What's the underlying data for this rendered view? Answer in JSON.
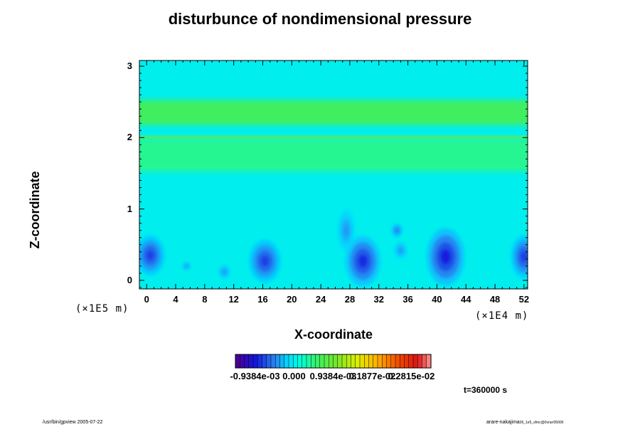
{
  "chart_data": {
    "type": "heatmap",
    "title": "disturbunce of nondimensional pressure",
    "xlabel": "X-coordinate",
    "ylabel": "Z-coordinate",
    "x_unit": "(×1E4 m)",
    "y_unit": "(×1E5 m)",
    "xlim": [
      -1,
      52.5
    ],
    "ylim": [
      -0.12,
      3.08
    ],
    "x_ticks": [
      "0",
      "4",
      "8",
      "12",
      "16",
      "20",
      "24",
      "28",
      "32",
      "36",
      "40",
      "44",
      "48",
      "52"
    ],
    "x_tick_values": [
      0,
      4,
      8,
      12,
      16,
      20,
      24,
      28,
      32,
      36,
      40,
      44,
      48,
      52
    ],
    "y_ticks": [
      "0",
      "1",
      "2",
      "3"
    ],
    "y_tick_values": [
      0,
      1,
      2,
      3
    ],
    "background_value": 0.0,
    "features": [
      {
        "kind": "band",
        "z_center": 2.35,
        "z_width": 0.35,
        "value": 0.0006
      },
      {
        "kind": "band",
        "z_center": 2.0,
        "z_width": 0.04,
        "value": 0.0009
      },
      {
        "kind": "band",
        "z_center": 1.75,
        "z_width": 0.45,
        "value": 0.0004
      },
      {
        "kind": "blob",
        "x": 0.5,
        "z": 0.35,
        "rx": 2.0,
        "rz": 0.28,
        "value": -0.00075
      },
      {
        "kind": "blob",
        "x": 5.5,
        "z": 0.2,
        "rx": 0.6,
        "rz": 0.06,
        "value": -0.0004
      },
      {
        "kind": "blob",
        "x": 10.7,
        "z": 0.12,
        "rx": 0.8,
        "rz": 0.1,
        "value": -0.0004
      },
      {
        "kind": "blob",
        "x": 16.3,
        "z": 0.27,
        "rx": 2.2,
        "rz": 0.3,
        "value": -0.00075
      },
      {
        "kind": "blob",
        "x": 27.5,
        "z": 0.7,
        "rx": 1.2,
        "rz": 0.3,
        "value": -0.0004
      },
      {
        "kind": "blob",
        "x": 29.8,
        "z": 0.27,
        "rx": 2.4,
        "rz": 0.35,
        "value": -0.00085
      },
      {
        "kind": "blob",
        "x": 34.5,
        "z": 0.7,
        "rx": 0.8,
        "rz": 0.1,
        "value": -0.0005
      },
      {
        "kind": "blob",
        "x": 35.0,
        "z": 0.42,
        "rx": 0.9,
        "rz": 0.12,
        "value": -0.0004
      },
      {
        "kind": "blob",
        "x": 41.2,
        "z": 0.33,
        "rx": 2.6,
        "rz": 0.4,
        "value": -0.0009
      },
      {
        "kind": "blob",
        "x": 52.0,
        "z": 0.33,
        "rx": 1.8,
        "rz": 0.3,
        "value": -0.00075
      }
    ],
    "colorbar": {
      "labels": [
        "-0.9384e-03",
        "0.000",
        "0.9384e-03",
        "0.1877e-02",
        "0.2815e-02"
      ],
      "values": [
        -0.0009384,
        0.0,
        0.0009384,
        0.001877,
        0.002815
      ],
      "min": -0.0014076,
      "max": 0.0032844
    }
  },
  "footer": {
    "left": "/usr/bin/gpview 2005-07-22",
    "right": "arare-nakajima",
    "right_sub": "05_1e5_sfmc@0vrar/05000",
    "time": "t=360000 s"
  }
}
